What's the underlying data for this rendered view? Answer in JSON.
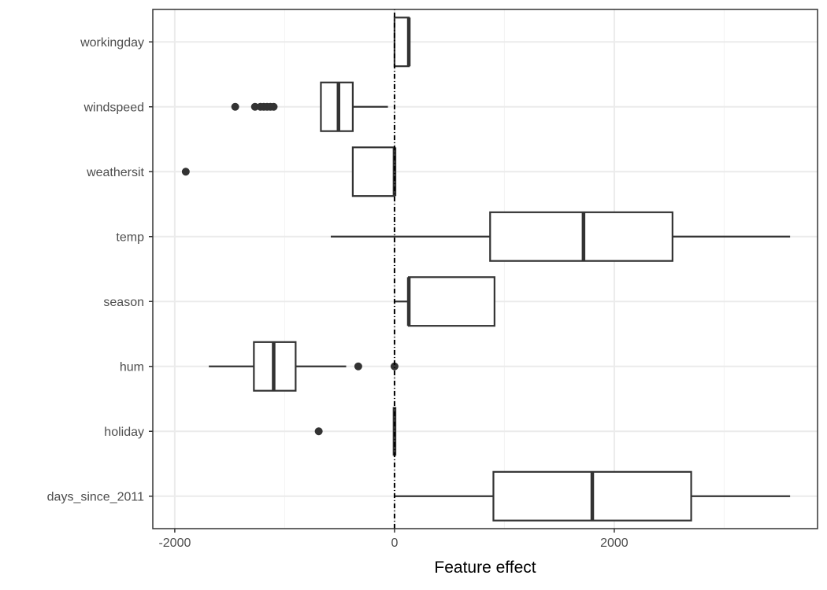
{
  "chart_data": {
    "type": "boxplot",
    "orientation": "horizontal",
    "xlabel": "Feature effect",
    "ylabel": "",
    "xlim": [
      -2200,
      3850
    ],
    "x_ticks": [
      -2000,
      0,
      2000
    ],
    "x_tick_labels": [
      "-2000",
      "0",
      "2000"
    ],
    "grid": true,
    "reference_line": {
      "x": 0,
      "style": "dotdash"
    },
    "categories": [
      "workingday",
      "windspeed",
      "weathersit",
      "temp",
      "season",
      "hum",
      "holiday",
      "days_since_2011"
    ],
    "boxes": [
      {
        "category": "workingday",
        "whisker_low": 0,
        "q1": 0,
        "median": 130,
        "q3": 130,
        "whisker_high": 130,
        "outliers": []
      },
      {
        "category": "windspeed",
        "whisker_low": -670,
        "q1": -670,
        "median": -510,
        "q3": -380,
        "whisker_high": -60,
        "outliers": [
          -1450,
          -1270,
          -1220,
          -1190,
          -1160,
          -1130,
          -1100
        ]
      },
      {
        "category": "weathersit",
        "whisker_low": -380,
        "q1": -380,
        "median": 0,
        "q3": 0,
        "whisker_high": 0,
        "outliers": [
          -1900
        ]
      },
      {
        "category": "temp",
        "whisker_low": -580,
        "q1": 870,
        "median": 1720,
        "q3": 2530,
        "whisker_high": 3600,
        "outliers": []
      },
      {
        "category": "season",
        "whisker_low": 0,
        "q1": 130,
        "median": 130,
        "q3": 910,
        "whisker_high": 910,
        "outliers": []
      },
      {
        "category": "hum",
        "whisker_low": -1690,
        "q1": -1280,
        "median": -1100,
        "q3": -900,
        "whisker_high": -440,
        "outliers": [
          -330,
          0
        ]
      },
      {
        "category": "holiday",
        "whisker_low": 0,
        "q1": 0,
        "median": 0,
        "q3": 0,
        "whisker_high": 0,
        "outliers": [
          -690
        ]
      },
      {
        "category": "days_since_2011",
        "whisker_low": 0,
        "q1": 900,
        "median": 1800,
        "q3": 2700,
        "whisker_high": 3600,
        "outliers": []
      }
    ]
  }
}
